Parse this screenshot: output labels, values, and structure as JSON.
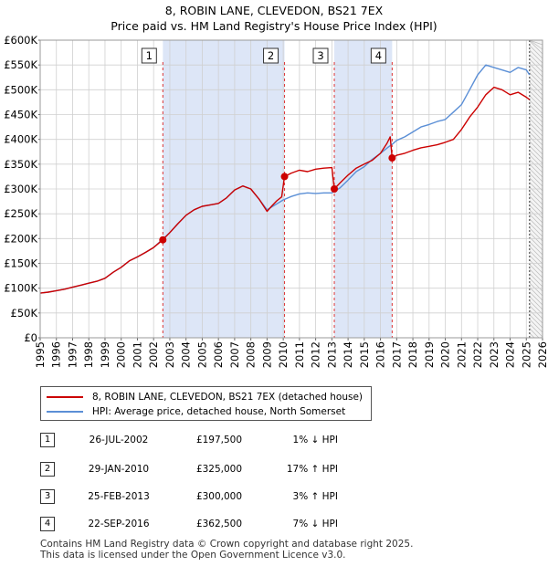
{
  "title": {
    "line1": "8, ROBIN LANE, CLEVEDON, BS21 7EX",
    "line2": "Price paid vs. HM Land Registry's House Price Index (HPI)"
  },
  "colors": {
    "price_paid": "#cc0000",
    "hpi": "#5b8fd6",
    "shade": "#dde6f7",
    "grid": "#d0d0d0",
    "marker": "#cc0000",
    "vline": "#dd3333"
  },
  "legend": {
    "price_paid_label": "8, ROBIN LANE, CLEVEDON, BS21 7EX (detached house)",
    "hpi_label": "HPI: Average price, detached house, North Somerset"
  },
  "sales": [
    {
      "num": "1",
      "date": "26-JUL-2002",
      "price": "£197,500",
      "hpi": "1% ↓ HPI"
    },
    {
      "num": "2",
      "date": "29-JAN-2010",
      "price": "£325,000",
      "hpi": "17% ↑ HPI"
    },
    {
      "num": "3",
      "date": "25-FEB-2013",
      "price": "£300,000",
      "hpi": "3% ↑ HPI"
    },
    {
      "num": "4",
      "date": "22-SEP-2016",
      "price": "£362,500",
      "hpi": "7% ↓ HPI"
    }
  ],
  "footer": {
    "line1": "Contains HM Land Registry data © Crown copyright and database right 2025.",
    "line2": "This data is licensed under the Open Government Licence v3.0."
  },
  "chart_data": {
    "type": "line",
    "title": "Price paid vs. HM Land Registry's House Price Index (HPI)",
    "xlabel": "",
    "ylabel": "",
    "xlim": [
      1995,
      2026
    ],
    "ylim": [
      0,
      600000
    ],
    "x_ticks": [
      1995,
      1996,
      1997,
      1998,
      1999,
      2000,
      2001,
      2002,
      2003,
      2004,
      2005,
      2006,
      2007,
      2008,
      2009,
      2010,
      2011,
      2012,
      2013,
      2014,
      2015,
      2016,
      2017,
      2018,
      2019,
      2020,
      2021,
      2022,
      2023,
      2024,
      2025,
      2026
    ],
    "y_ticks": [
      {
        "v": 0,
        "label": "£0"
      },
      {
        "v": 50000,
        "label": "£50K"
      },
      {
        "v": 100000,
        "label": "£100K"
      },
      {
        "v": 150000,
        "label": "£150K"
      },
      {
        "v": 200000,
        "label": "£200K"
      },
      {
        "v": 250000,
        "label": "£250K"
      },
      {
        "v": 300000,
        "label": "£300K"
      },
      {
        "v": 350000,
        "label": "£350K"
      },
      {
        "v": 400000,
        "label": "£400K"
      },
      {
        "v": 450000,
        "label": "£450K"
      },
      {
        "v": 500000,
        "label": "£500K"
      },
      {
        "v": 550000,
        "label": "£550K"
      },
      {
        "v": 600000,
        "label": "£600K"
      }
    ],
    "grid": true,
    "shaded_periods": [
      [
        2002.57,
        2010.08
      ],
      [
        2013.15,
        2016.72
      ]
    ],
    "hatched_after": 2025.2,
    "sale_points": [
      {
        "label": "1",
        "x": 2002.57,
        "y": 197500
      },
      {
        "label": "2",
        "x": 2010.08,
        "y": 325000
      },
      {
        "label": "3",
        "x": 2013.15,
        "y": 300000
      },
      {
        "label": "4",
        "x": 2016.72,
        "y": 362500
      }
    ],
    "series": [
      {
        "name": "8, ROBIN LANE, CLEVEDON, BS21 7EX (detached house)",
        "x": [
          1995,
          1995.5,
          1996,
          1996.5,
          1997,
          1997.5,
          1998,
          1998.5,
          1999,
          1999.5,
          2000,
          2000.5,
          2001,
          2001.5,
          2002,
          2002.57,
          2003,
          2003.5,
          2004,
          2004.5,
          2005,
          2005.5,
          2006,
          2006.5,
          2007,
          2007.5,
          2008,
          2008.5,
          2009,
          2009.3,
          2009.6,
          2009.9,
          2010.08,
          2010.5,
          2011,
          2011.5,
          2012,
          2012.5,
          2013.0,
          2013.15,
          2013.5,
          2014,
          2014.5,
          2015,
          2015.5,
          2016,
          2016.4,
          2016.6,
          2016.72,
          2017,
          2017.5,
          2018,
          2018.5,
          2019,
          2019.5,
          2020,
          2020.5,
          2021,
          2021.5,
          2022,
          2022.5,
          2023,
          2023.5,
          2024,
          2024.5,
          2025,
          2025.2
        ],
        "y": [
          90000,
          92000,
          95000,
          98000,
          102000,
          106000,
          110000,
          114000,
          120000,
          132000,
          142000,
          155000,
          163000,
          172000,
          182000,
          197500,
          212000,
          230000,
          247000,
          258000,
          265000,
          268000,
          271000,
          282000,
          298000,
          306000,
          300000,
          280000,
          255000,
          266000,
          276000,
          284000,
          325000,
          332000,
          338000,
          335000,
          340000,
          342000,
          343000,
          300000,
          312000,
          328000,
          342000,
          350000,
          358000,
          372000,
          392000,
          405000,
          362500,
          368000,
          372000,
          378000,
          383000,
          386000,
          389000,
          394000,
          400000,
          420000,
          445000,
          465000,
          490000,
          505000,
          500000,
          490000,
          495000,
          485000,
          480000
        ]
      },
      {
        "name": "HPI: Average price, detached house, North Somerset",
        "x": [
          1995,
          1995.5,
          1996,
          1996.5,
          1997,
          1997.5,
          1998,
          1998.5,
          1999,
          1999.5,
          2000,
          2000.5,
          2001,
          2001.5,
          2002,
          2002.57,
          2003,
          2003.5,
          2004,
          2004.5,
          2005,
          2005.5,
          2006,
          2006.5,
          2007,
          2007.5,
          2008,
          2008.5,
          2009,
          2009.5,
          2010,
          2010.5,
          2011,
          2011.5,
          2012,
          2012.5,
          2013,
          2013.5,
          2014,
          2014.5,
          2015,
          2015.5,
          2016,
          2016.5,
          2016.72,
          2017,
          2017.5,
          2018,
          2018.5,
          2019,
          2019.5,
          2020,
          2020.5,
          2021,
          2021.5,
          2022,
          2022.5,
          2023,
          2023.5,
          2024,
          2024.5,
          2025,
          2025.2
        ],
        "y": [
          90000,
          92000,
          95000,
          98000,
          102000,
          106000,
          110000,
          114000,
          120000,
          132000,
          142000,
          155000,
          163000,
          172000,
          182000,
          199000,
          212000,
          230000,
          247000,
          258000,
          265000,
          268000,
          271000,
          282000,
          298000,
          306000,
          300000,
          280000,
          258000,
          268000,
          278000,
          285000,
          290000,
          292000,
          291000,
          292000,
          292000,
          302000,
          318000,
          335000,
          345000,
          360000,
          372000,
          385000,
          390000,
          398000,
          405000,
          415000,
          425000,
          430000,
          436000,
          440000,
          455000,
          470000,
          500000,
          530000,
          550000,
          545000,
          540000,
          535000,
          545000,
          540000,
          530000
        ]
      }
    ]
  }
}
